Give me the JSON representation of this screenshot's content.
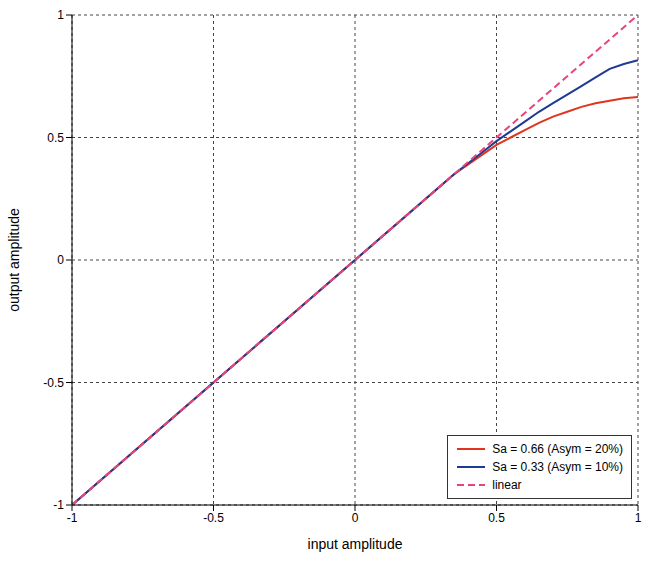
{
  "chart_data": {
    "type": "line",
    "xlabel": "input amplitude",
    "ylabel": "output amplitude",
    "x": [
      -1,
      -0.75,
      -0.5,
      -0.25,
      0,
      0.25,
      0.3,
      0.35,
      0.4,
      0.45,
      0.5,
      0.55,
      0.6,
      0.65,
      0.7,
      0.75,
      0.8,
      0.85,
      0.9,
      0.95,
      1
    ],
    "series": [
      {
        "name": "Sa = 0.66 (Asym = 20%)",
        "color": "#e0341e",
        "line_style": "solid",
        "values": [
          -1,
          -0.75,
          -0.5,
          -0.25,
          0,
          0.25,
          0.3,
          0.35,
          0.39,
          0.43,
          0.47,
          0.5,
          0.53,
          0.56,
          0.585,
          0.605,
          0.625,
          0.64,
          0.65,
          0.66,
          0.665
        ]
      },
      {
        "name": "Sa = 0.33 (Asym = 10%)",
        "color": "#1f3a93",
        "line_style": "solid",
        "values": [
          -1,
          -0.75,
          -0.5,
          -0.25,
          0,
          0.25,
          0.3,
          0.35,
          0.395,
          0.44,
          0.485,
          0.525,
          0.565,
          0.605,
          0.64,
          0.675,
          0.71,
          0.745,
          0.78,
          0.8,
          0.815
        ]
      },
      {
        "name": "linear",
        "color": "#e8447a",
        "line_style": "dashed",
        "values": [
          -1,
          -0.75,
          -0.5,
          -0.25,
          0,
          0.25,
          0.3,
          0.35,
          0.4,
          0.45,
          0.5,
          0.55,
          0.6,
          0.65,
          0.7,
          0.75,
          0.8,
          0.85,
          0.9,
          0.95,
          1
        ]
      }
    ],
    "xlim": [
      -1,
      1
    ],
    "ylim": [
      -1,
      1
    ],
    "xticks": [
      -1,
      -0.5,
      0,
      0.5,
      1
    ],
    "yticks": [
      -1,
      -0.5,
      0,
      0.5,
      1
    ],
    "grid": true,
    "legend": "bottom right"
  }
}
